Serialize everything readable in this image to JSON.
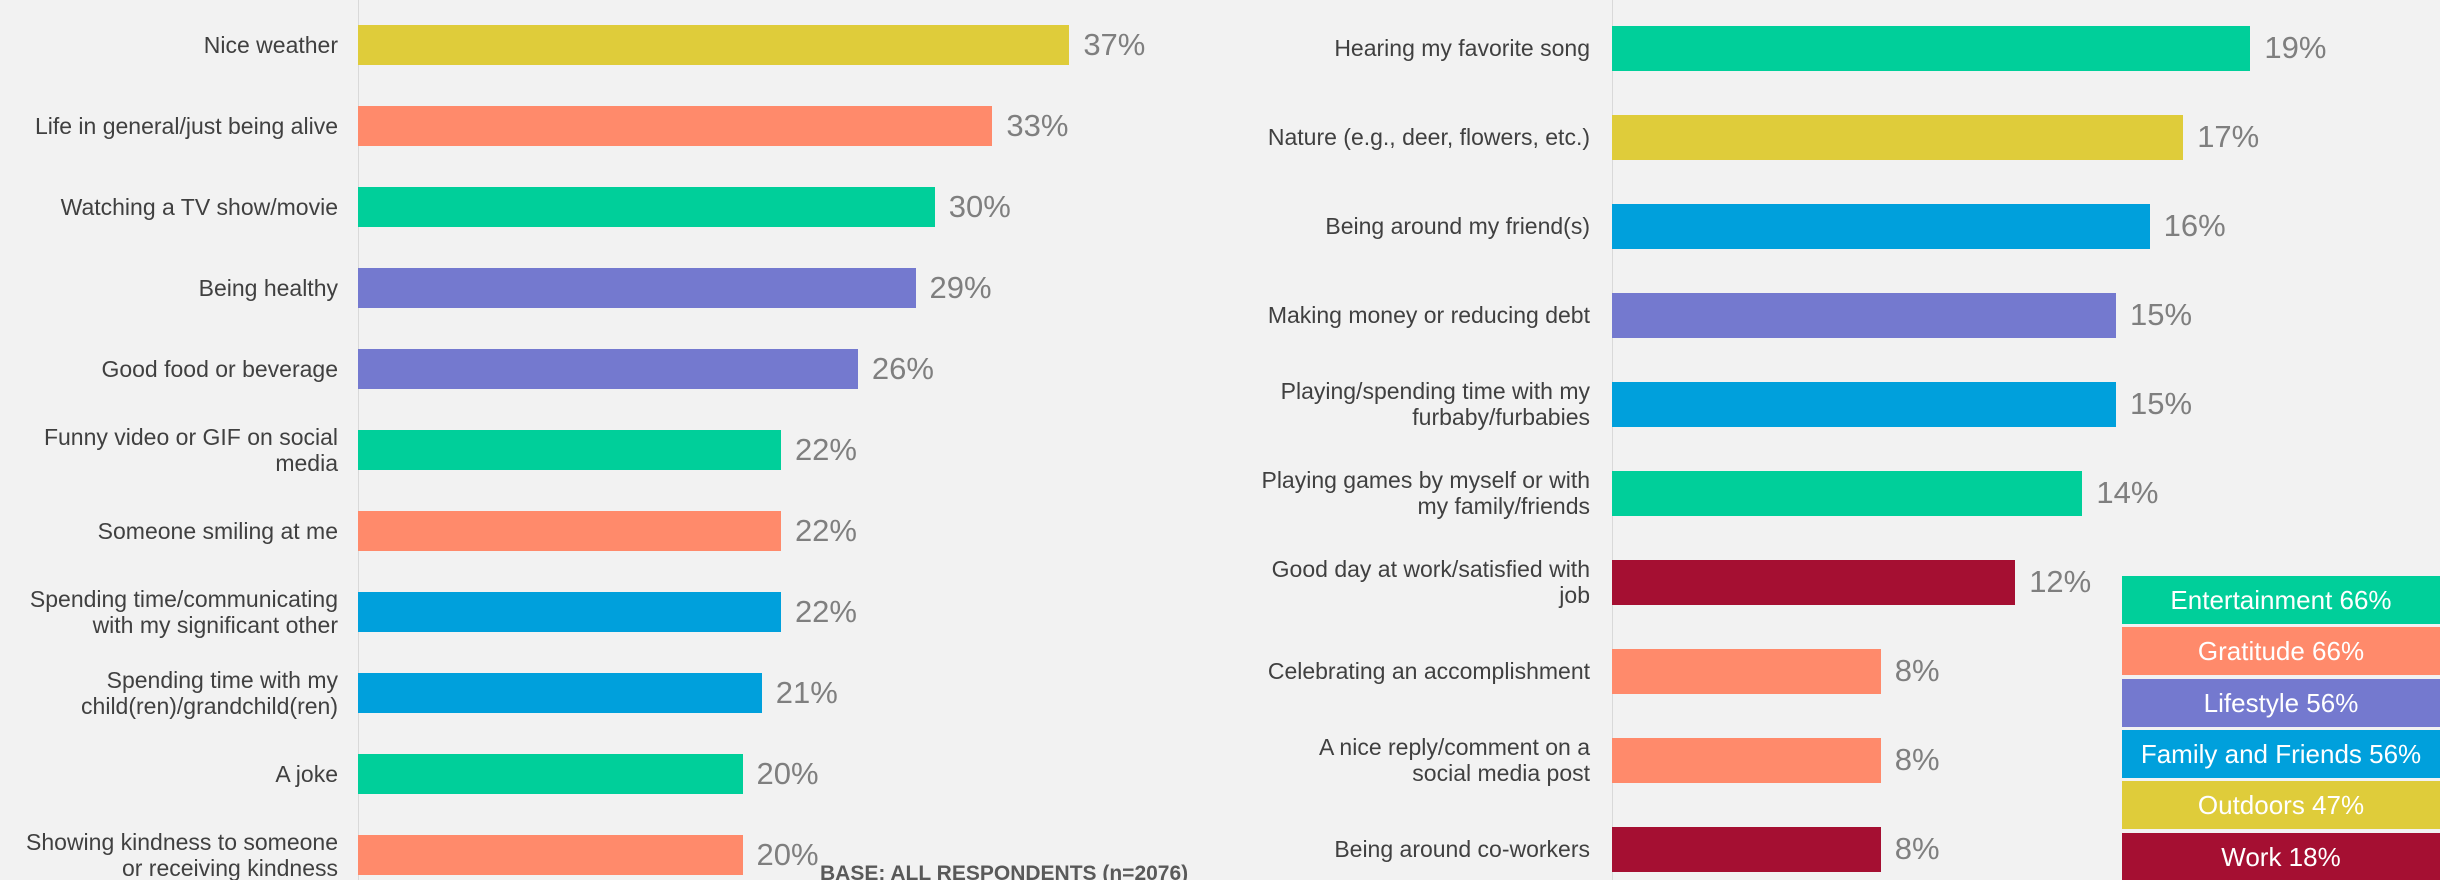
{
  "chart_data": [
    {
      "type": "bar",
      "orientation": "horizontal",
      "xlim": [
        0,
        40
      ],
      "categories": [
        "Nice weather",
        "Life in general/just being alive",
        "Watching a TV show/movie",
        "Being healthy",
        "Good food or beverage",
        "Funny video or GIF on social\nmedia",
        "Someone smiling at me",
        "Spending time/communicating\nwith my significant other",
        "Spending time with my\nchild(ren)/grandchild(ren)",
        "A joke",
        "Showing kindness to someone\nor receiving kindness"
      ],
      "values": [
        37,
        33,
        30,
        29,
        26,
        22,
        22,
        22,
        21,
        20,
        20
      ],
      "value_labels": [
        "37%",
        "33%",
        "30%",
        "29%",
        "26%",
        "22%",
        "22%",
        "22%",
        "21%",
        "20%",
        "20%"
      ],
      "colors": [
        "#dfcc3a",
        "#ff8a6b",
        "#00cf9a",
        "#7479cf",
        "#7479cf",
        "#00cf9a",
        "#ff8a6b",
        "#00a0dc",
        "#00a0dc",
        "#00cf9a",
        "#ff8a6b"
      ]
    },
    {
      "type": "bar",
      "orientation": "horizontal",
      "xlim": [
        0,
        20
      ],
      "categories": [
        "Hearing my favorite song",
        "Nature (e.g., deer, flowers, etc.)",
        "Being around my friend(s)",
        "Making money or reducing debt",
        "Playing/spending time with my\nfurbaby/furbabies",
        "Playing games by myself or with\nmy family/friends",
        "Good day at work/satisfied with\njob",
        "Celebrating an accomplishment",
        "A nice reply/comment on a\nsocial media post",
        "Being around co-workers"
      ],
      "values": [
        19,
        17,
        16,
        15,
        15,
        14,
        12,
        8,
        8,
        8
      ],
      "value_labels": [
        "19%",
        "17%",
        "16%",
        "15%",
        "15%",
        "14%",
        "12%",
        "8%",
        "8%",
        "8%"
      ],
      "colors": [
        "#00cf9a",
        "#dfcc3a",
        "#00a0dc",
        "#7479cf",
        "#00a0dc",
        "#00cf9a",
        "#a50f32",
        "#ff8a6b",
        "#ff8a6b",
        "#a50f32"
      ]
    }
  ],
  "legend": [
    {
      "label": "Entertainment 66%",
      "color": "#00cf9a"
    },
    {
      "label": "Gratitude 66%",
      "color": "#ff8a6b"
    },
    {
      "label": "Lifestyle 56%",
      "color": "#7479cf"
    },
    {
      "label": "Family and Friends 56%",
      "color": "#00a0dc"
    },
    {
      "label": "Outdoors 47%",
      "color": "#dfcc3a"
    },
    {
      "label": "Work 18%",
      "color": "#a50f32"
    }
  ],
  "footnote": "BASE: ALL RESPONDENTS (n=2076)"
}
